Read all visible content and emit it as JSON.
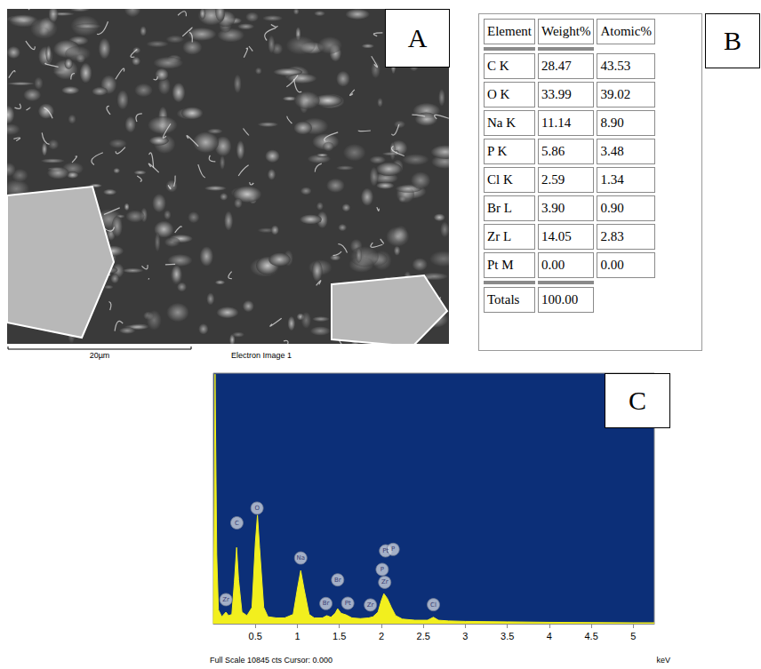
{
  "panels": {
    "A": {
      "label": "A",
      "scale_bar": "20µm",
      "caption": "Electron Image 1"
    },
    "B": {
      "label": "B",
      "table": {
        "header": [
          "Element",
          "Weight%",
          "Atomic%"
        ],
        "rows": [
          [
            "C K",
            "28.47",
            "43.53"
          ],
          [
            "O K",
            "33.99",
            "39.02"
          ],
          [
            "Na K",
            "11.14",
            "8.90"
          ],
          [
            "P K",
            "5.86",
            "3.48"
          ],
          [
            "Cl K",
            "2.59",
            "1.34"
          ],
          [
            "Br L",
            "3.90",
            "0.90"
          ],
          [
            "Zr L",
            "14.05",
            "2.83"
          ],
          [
            "Pt M",
            "0.00",
            "0.00"
          ]
        ],
        "totals": [
          "Totals",
          "100.00"
        ]
      }
    },
    "C": {
      "label": "C"
    }
  },
  "chart_data": {
    "type": "line",
    "xlabel": "keV",
    "footer": "Full Scale 10845 cts Cursor: 0.000",
    "color": "#f2ef1e",
    "grid": false,
    "tick_labels": "x",
    "xlim": [
      0,
      5.25
    ],
    "xticks": [
      0.5,
      1,
      1.5,
      2,
      2.5,
      3,
      3.5,
      4,
      4.5,
      5
    ],
    "ylim": [
      0,
      10845
    ],
    "x": [
      0,
      0.01,
      0.02,
      0.04,
      0.06,
      0.1,
      0.15,
      0.18,
      0.22,
      0.25,
      0.277,
      0.3,
      0.34,
      0.4,
      0.46,
      0.5,
      0.525,
      0.55,
      0.6,
      0.65,
      0.75,
      0.85,
      0.95,
      1.0,
      1.04,
      1.08,
      1.14,
      1.2,
      1.3,
      1.35,
      1.4,
      1.45,
      1.48,
      1.52,
      1.58,
      1.65,
      1.75,
      1.85,
      1.9,
      1.96,
      2.0,
      2.03,
      2.07,
      2.12,
      2.17,
      2.25,
      2.4,
      2.55,
      2.62,
      2.68,
      2.8,
      3.0,
      3.5,
      4.0,
      4.5,
      5.0,
      5.25
    ],
    "values": [
      0,
      4000,
      10800,
      3000,
      600,
      300,
      500,
      350,
      400,
      1800,
      3300,
      1900,
      500,
      350,
      700,
      3500,
      4700,
      3300,
      700,
      300,
      250,
      250,
      400,
      1500,
      2300,
      1500,
      400,
      250,
      250,
      350,
      280,
      450,
      650,
      450,
      380,
      250,
      220,
      250,
      300,
      500,
      1000,
      1300,
      1100,
      700,
      350,
      200,
      150,
      150,
      280,
      150,
      120,
      100,
      80,
      60,
      50,
      40,
      40
    ],
    "annotations": [
      {
        "text": "Zr",
        "x": 0.15
      },
      {
        "text": "C",
        "x": 0.28
      },
      {
        "text": "O",
        "x": 0.52
      },
      {
        "text": "Na",
        "x": 1.04
      },
      {
        "text": "Br",
        "x": 1.34
      },
      {
        "text": "Br",
        "x": 1.48
      },
      {
        "text": "Pt",
        "x": 1.6
      },
      {
        "text": "Zr",
        "x": 1.87
      },
      {
        "text": "P",
        "x": 2.01
      },
      {
        "text": "Zr",
        "x": 2.04
      },
      {
        "text": "Pt",
        "x": 2.05
      },
      {
        "text": "P",
        "x": 2.14
      },
      {
        "text": "Cl",
        "x": 2.62
      }
    ]
  }
}
